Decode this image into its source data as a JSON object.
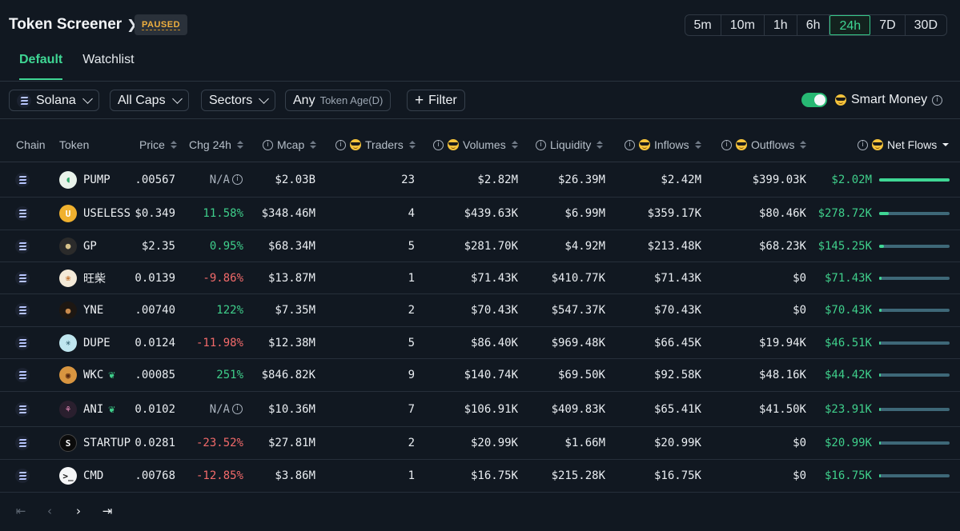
{
  "header": {
    "title": "Token Screener",
    "status_badge": "PAUSED",
    "timeframes": [
      "5m",
      "10m",
      "1h",
      "6h",
      "24h",
      "7D",
      "30D"
    ],
    "active_timeframe": "24h",
    "tabs": [
      "Default",
      "Watchlist"
    ],
    "active_tab": "Default"
  },
  "filters": {
    "chain": "Solana",
    "caps": "All Caps",
    "sectors": "Sectors",
    "age_value": "Any",
    "age_label": "Token Age(D)",
    "filter_label": "Filter",
    "smart_money_label": "Smart Money",
    "smart_money_enabled": true
  },
  "columns": {
    "chain": "Chain",
    "token": "Token",
    "price": "Price",
    "chg": "Chg 24h",
    "mcap": "Mcap",
    "traders": "Traders",
    "volumes": "Volumes",
    "liquidity": "Liquidity",
    "inflows": "Inflows",
    "outflows": "Outflows",
    "net_flows": "Net Flows"
  },
  "colors": {
    "accent": "#3fd694",
    "positive": "#3fcf8b",
    "negative": "#f26a6a",
    "paused": "#f0b03f"
  },
  "rows": [
    {
      "token": "PUMP",
      "icon": "pill-icon",
      "price": ".00567",
      "chg": "N/A",
      "chg_kind": "na",
      "mcap": "$2.03B",
      "traders": "23",
      "volumes": "$2.82M",
      "liquidity": "$26.39M",
      "inflows": "$2.42M",
      "outflows": "$399.03K",
      "net": "$2.02M",
      "net_fraction": 1.0,
      "sprout": false
    },
    {
      "token": "USELESS",
      "icon": "useless-coin-icon",
      "price": "$0.349",
      "chg": "11.58%",
      "chg_kind": "pos",
      "mcap": "$348.46M",
      "traders": "4",
      "volumes": "$439.63K",
      "liquidity": "$6.99M",
      "inflows": "$359.17K",
      "outflows": "$80.46K",
      "net": "$278.72K",
      "net_fraction": 0.14,
      "sprout": false
    },
    {
      "token": "GP",
      "icon": "gp-avatar-icon",
      "price": "$2.35",
      "chg": "0.95%",
      "chg_kind": "pos",
      "mcap": "$68.34M",
      "traders": "5",
      "volumes": "$281.70K",
      "liquidity": "$4.92M",
      "inflows": "$213.48K",
      "outflows": "$68.23K",
      "net": "$145.25K",
      "net_fraction": 0.07,
      "sprout": false
    },
    {
      "token": "旺柴",
      "icon": "dog-avatar-icon",
      "price": "0.0139",
      "chg": "-9.86%",
      "chg_kind": "neg",
      "mcap": "$13.87M",
      "traders": "1",
      "volumes": "$71.43K",
      "liquidity": "$410.77K",
      "inflows": "$71.43K",
      "outflows": "$0",
      "net": "$71.43K",
      "net_fraction": 0.035,
      "sprout": false
    },
    {
      "token": "YNE",
      "icon": "yne-avatar-icon",
      "price": ".00740",
      "chg": "122%",
      "chg_kind": "pos",
      "mcap": "$7.35M",
      "traders": "2",
      "volumes": "$70.43K",
      "liquidity": "$547.37K",
      "inflows": "$70.43K",
      "outflows": "$0",
      "net": "$70.43K",
      "net_fraction": 0.035,
      "sprout": false
    },
    {
      "token": "DUPE",
      "icon": "dupe-logo-icon",
      "price": "0.0124",
      "chg": "-11.98%",
      "chg_kind": "neg",
      "mcap": "$12.38M",
      "traders": "5",
      "volumes": "$86.40K",
      "liquidity": "$969.48K",
      "inflows": "$66.45K",
      "outflows": "$19.94K",
      "net": "$46.51K",
      "net_fraction": 0.023,
      "sprout": false
    },
    {
      "token": "WKC",
      "icon": "wkc-avatar-icon",
      "price": ".00085",
      "chg": "251%",
      "chg_kind": "pos",
      "mcap": "$846.82K",
      "traders": "9",
      "volumes": "$140.74K",
      "liquidity": "$69.50K",
      "inflows": "$92.58K",
      "outflows": "$48.16K",
      "net": "$44.42K",
      "net_fraction": 0.022,
      "sprout": true
    },
    {
      "token": "ANI",
      "icon": "ani-avatar-icon",
      "price": "0.0102",
      "chg": "N/A",
      "chg_kind": "na",
      "mcap": "$10.36M",
      "traders": "7",
      "volumes": "$106.91K",
      "liquidity": "$409.83K",
      "inflows": "$65.41K",
      "outflows": "$41.50K",
      "net": "$23.91K",
      "net_fraction": 0.012,
      "sprout": true
    },
    {
      "token": "STARTUP",
      "icon": "startup-logo-icon",
      "price": "0.0281",
      "chg": "-23.52%",
      "chg_kind": "neg",
      "mcap": "$27.81M",
      "traders": "2",
      "volumes": "$20.99K",
      "liquidity": "$1.66M",
      "inflows": "$20.99K",
      "outflows": "$0",
      "net": "$20.99K",
      "net_fraction": 0.01,
      "sprout": false
    },
    {
      "token": "CMD",
      "icon": "terminal-icon",
      "price": ".00768",
      "chg": "-12.85%",
      "chg_kind": "neg",
      "mcap": "$3.86M",
      "traders": "1",
      "volumes": "$16.75K",
      "liquidity": "$215.28K",
      "inflows": "$16.75K",
      "outflows": "$0",
      "net": "$16.75K",
      "net_fraction": 0.008,
      "sprout": false
    }
  ]
}
